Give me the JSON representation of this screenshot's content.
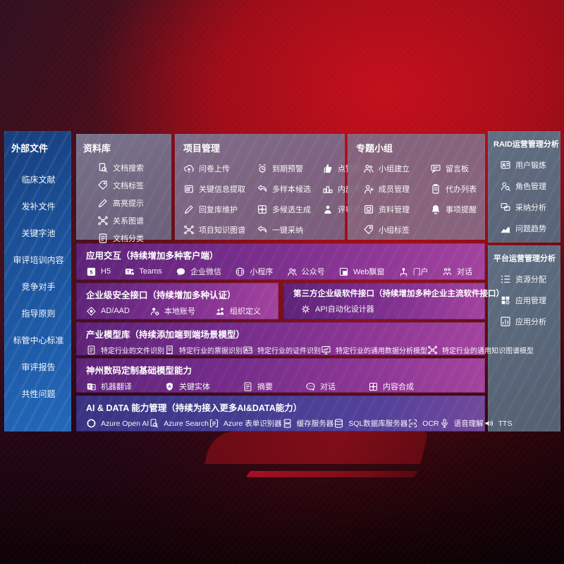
{
  "colors": {
    "background_red": "#93101c",
    "sidebar_blue": "#1e5ca9",
    "panel_gray": "#77708c",
    "panel_steel": "#5e7186",
    "row_purple": "#8c3695",
    "row_indigo": "#453e92"
  },
  "sidebar": {
    "title": "外部文件",
    "items": [
      "临床文献",
      "发补文件",
      "关键字池",
      "审评培训内容",
      "竞争对手",
      "指导原则",
      "标管中心标准",
      "审评报告",
      "共性问题"
    ]
  },
  "repository": {
    "title": "资料库",
    "items": [
      {
        "icon": "doc-search",
        "label": "文档搜索"
      },
      {
        "icon": "tag",
        "label": "文档标签"
      },
      {
        "icon": "pencil",
        "label": "高亮提示"
      },
      {
        "icon": "graph",
        "label": "关系图谱"
      },
      {
        "icon": "doc",
        "label": "文档分类"
      }
    ]
  },
  "project": {
    "title": "项目管理",
    "columns": [
      [
        {
          "icon": "cloud-upload",
          "label": "问卷上传"
        },
        {
          "icon": "extract",
          "label": "关键信息提取"
        },
        {
          "icon": "pencil",
          "label": "回复库维护"
        },
        {
          "icon": "graph",
          "label": "项目知识图谱"
        }
      ],
      [
        {
          "icon": "alarm",
          "label": "到期预警"
        },
        {
          "icon": "reply",
          "label": "多样本候选"
        },
        {
          "icon": "puzzle",
          "label": "多候选生成"
        },
        {
          "icon": "reply",
          "label": "一键采纳"
        }
      ],
      [
        {
          "icon": "thumb",
          "label": "点赞感谢"
        },
        {
          "icon": "podium",
          "label": "内部专家排名"
        },
        {
          "icon": "person",
          "label": "评审员画像"
        }
      ]
    ]
  },
  "groups": {
    "title": "专题小组",
    "columns": [
      [
        {
          "icon": "users",
          "label": "小组建立"
        },
        {
          "icon": "person-plus",
          "label": "成员管理"
        },
        {
          "icon": "archive",
          "label": "资料管理"
        },
        {
          "icon": "tag",
          "label": "小组标签"
        }
      ],
      [
        {
          "icon": "bbs",
          "label": "留言板"
        },
        {
          "icon": "clipboard",
          "label": "代办列表"
        },
        {
          "icon": "bell",
          "label": "事项提醒"
        }
      ]
    ]
  },
  "raid": {
    "title": "RAID运营管理分析",
    "items": [
      {
        "icon": "idcard",
        "label": "用户锻炼"
      },
      {
        "icon": "role-search",
        "label": "角色管理"
      },
      {
        "icon": "qa",
        "label": "采纳分析"
      },
      {
        "icon": "trend",
        "label": "问题趋势"
      }
    ]
  },
  "platform": {
    "title": "平台运营管理分析",
    "items": [
      {
        "icon": "list",
        "label": "资源分配"
      },
      {
        "icon": "grid",
        "label": "应用管理"
      },
      {
        "icon": "analytics",
        "label": "应用分析"
      }
    ]
  },
  "rows": {
    "interaction": {
      "title": "应用交互（持续增加多种客户端）",
      "items": [
        {
          "icon": "h5",
          "label": "H5"
        },
        {
          "icon": "teams",
          "label": "Teams"
        },
        {
          "icon": "wecom",
          "label": "企业微信"
        },
        {
          "icon": "miniprogram",
          "label": "小程序"
        },
        {
          "icon": "users",
          "label": "公众号"
        },
        {
          "icon": "webwin",
          "label": "Web飘窗"
        },
        {
          "icon": "portal",
          "label": "门户"
        },
        {
          "icon": "dialog-people",
          "label": "对话"
        }
      ]
    },
    "security": {
      "title": "企业级安全接口（持续增加多种认证）",
      "items": [
        {
          "icon": "shield-diamond",
          "label": "AD/AAD"
        },
        {
          "icon": "person-gear",
          "label": "本地账号"
        },
        {
          "icon": "org",
          "label": "组织定义"
        }
      ]
    },
    "thirdparty": {
      "title": "第三方企业级软件接口（持续增加多种企业主流软件接口）",
      "items": [
        {
          "icon": "api-gear",
          "label": "API自动化设计器"
        }
      ]
    },
    "models": {
      "title": "产业模型库（持续添加端到端场景模型）",
      "items": [
        {
          "icon": "doc",
          "label": "特定行业的文件识别"
        },
        {
          "icon": "receipt",
          "label": "特定行业的票据识别"
        },
        {
          "icon": "idcard",
          "label": "特定行业的证件识别"
        },
        {
          "icon": "monitor-chart",
          "label": "特定行业的通用数据分析模型"
        },
        {
          "icon": "graph",
          "label": "特定行业的通用知识图谱模型"
        }
      ]
    },
    "basemodel": {
      "title": "神州数码定制基础模型能力",
      "items": [
        {
          "icon": "translate",
          "label": "机器翻译"
        },
        {
          "icon": "entity-shield",
          "label": "关键实体"
        },
        {
          "icon": "doc",
          "label": "摘要"
        },
        {
          "icon": "chat-dots",
          "label": "对话"
        },
        {
          "icon": "puzzle",
          "label": "内容合成"
        }
      ]
    },
    "aidata": {
      "title": "AI & DATA 能力管理（持续为接入更多AI&DATA能力）",
      "items": [
        {
          "icon": "openai",
          "label": "Azure Open AI"
        },
        {
          "icon": "doc-search",
          "label": "Azure Search"
        },
        {
          "icon": "form-recognizer",
          "label": "Azure 表单识别器"
        },
        {
          "icon": "server",
          "label": "缓存服务器"
        },
        {
          "icon": "database",
          "label": "SQL数据库服务器"
        },
        {
          "icon": "ocr",
          "label": "OCR"
        },
        {
          "icon": "speech",
          "label": "语音理解"
        },
        {
          "icon": "tts",
          "label": "TTS"
        }
      ]
    }
  }
}
